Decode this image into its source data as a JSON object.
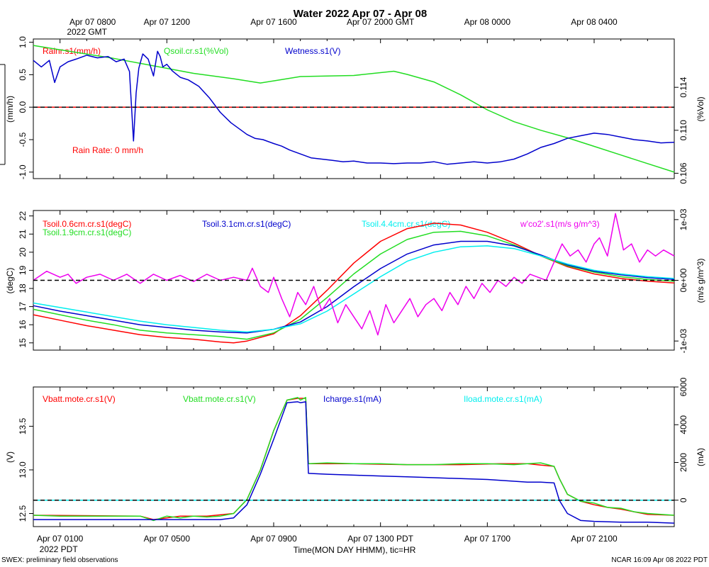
{
  "title": "Water 2022 Apr 07 - Apr 08",
  "top_axis": {
    "ticks": [
      {
        "t": 0,
        "l1": "Apr 07 0800",
        "l2": "2022 GMT"
      },
      {
        "t": 4,
        "l1": "Apr 07 1200",
        "l2": ""
      },
      {
        "t": 8,
        "l1": "Apr 07 1600",
        "l2": ""
      },
      {
        "t": 12,
        "l1": "Apr 07 2000 GMT",
        "l2": ""
      },
      {
        "t": 16,
        "l1": "Apr 08 0000",
        "l2": ""
      },
      {
        "t": 20,
        "l1": "Apr 08 0400",
        "l2": ""
      }
    ]
  },
  "bottom_axis": {
    "ticks": [
      {
        "t": 0,
        "l1": "Apr 07 0100",
        "l2": "2022 PDT"
      },
      {
        "t": 4,
        "l1": "Apr 07 0500",
        "l2": ""
      },
      {
        "t": 8,
        "l1": "Apr 07 0900",
        "l2": ""
      },
      {
        "t": 12,
        "l1": "Apr 07 1300 PDT",
        "l2": ""
      },
      {
        "t": 16,
        "l1": "Apr 07 1700",
        "l2": ""
      },
      {
        "t": 20,
        "l1": "Apr 07 2100",
        "l2": ""
      }
    ],
    "label": "Time(MON DAY HHMM), tic=HR"
  },
  "footer_left": "SWEX: preliminary field observations",
  "footer_right": "NCAR 16:09 Apr 08 2022 PDT",
  "colors": {
    "red": "#ff0000",
    "green": "#22dd22",
    "blue": "#0000cc",
    "cyan": "#00eeee",
    "magenta": "#ee00ee"
  },
  "chart_data": [
    {
      "type": "line",
      "panel": "water",
      "xlim": [
        -1.0,
        23.0
      ],
      "left_axis": {
        "label": "(mm/h)",
        "ylim": [
          -1.1,
          1.05
        ],
        "ticks": [
          -1.0,
          -0.5,
          0.0,
          0.5,
          1.0
        ],
        "tick_labels": [
          "-1.0",
          "-0.5",
          "0.0",
          "0.5",
          "1.0"
        ]
      },
      "right_axis": {
        "label": "(%Vol)",
        "ylim": [
          0.1055,
          0.1185
        ],
        "ticks": [
          0.106,
          0.11,
          0.114
        ],
        "tick_labels": [
          "0.106",
          "0.110",
          "0.114"
        ]
      },
      "zero_line": 0.0,
      "annotation": "Rain Rate: 0 mm/h",
      "series": [
        {
          "name": "Rainr.s1(mm/h)",
          "color": "red",
          "axis": "left",
          "x": [
            -1.0,
            23.0
          ],
          "y": [
            0.0,
            0.0
          ]
        },
        {
          "name": "Qsoil.cr.s1(%Vol)",
          "color": "green",
          "axis": "right",
          "x": [
            -1.0,
            0.0,
            2.0,
            3.5,
            5.0,
            6.5,
            7.5,
            8.0,
            9.0,
            11.0,
            12.5,
            13.0,
            14.0,
            15.0,
            16.0,
            17.0,
            18.0,
            19.0,
            20.0,
            21.0,
            22.0,
            23.0
          ],
          "y": [
            0.1179,
            0.1175,
            0.1167,
            0.116,
            0.1153,
            0.1148,
            0.1144,
            0.1146,
            0.115,
            0.1151,
            0.1155,
            0.1152,
            0.1145,
            0.1133,
            0.1119,
            0.1108,
            0.11,
            0.1093,
            0.1085,
            0.1077,
            0.1069,
            0.1061
          ]
        },
        {
          "name": "Wetness.s1(V)",
          "color": "blue",
          "axis": "left",
          "x": [
            -1.0,
            -0.7,
            -0.4,
            -0.2,
            0.0,
            0.3,
            0.6,
            1.0,
            1.4,
            1.8,
            2.1,
            2.4,
            2.6,
            2.75,
            2.85,
            2.95,
            3.1,
            3.3,
            3.5,
            3.65,
            3.75,
            3.85,
            4.0,
            4.2,
            4.5,
            4.8,
            5.2,
            5.6,
            6.0,
            6.4,
            6.8,
            7.0,
            7.3,
            7.6,
            8.0,
            8.3,
            8.6,
            9.0,
            9.4,
            9.8,
            10.2,
            10.6,
            11.0,
            11.5,
            12.0,
            12.5,
            13.0,
            13.5,
            14.0,
            14.5,
            15.0,
            15.5,
            16.0,
            16.5,
            17.0,
            17.5,
            18.0,
            18.5,
            19.0,
            19.5,
            20.0,
            20.5,
            21.0,
            21.5,
            22.0,
            22.5,
            23.0
          ],
          "y": [
            0.72,
            0.62,
            0.72,
            0.38,
            0.62,
            0.7,
            0.74,
            0.8,
            0.76,
            0.78,
            0.7,
            0.74,
            0.55,
            -0.52,
            0.22,
            0.6,
            0.82,
            0.74,
            0.48,
            0.86,
            0.78,
            0.62,
            0.66,
            0.56,
            0.46,
            0.42,
            0.32,
            0.14,
            -0.08,
            -0.24,
            -0.36,
            -0.42,
            -0.48,
            -0.5,
            -0.56,
            -0.6,
            -0.66,
            -0.72,
            -0.78,
            -0.8,
            -0.82,
            -0.84,
            -0.83,
            -0.86,
            -0.86,
            -0.87,
            -0.86,
            -0.86,
            -0.84,
            -0.88,
            -0.86,
            -0.84,
            -0.86,
            -0.84,
            -0.8,
            -0.72,
            -0.62,
            -0.56,
            -0.48,
            -0.44,
            -0.4,
            -0.42,
            -0.46,
            -0.5,
            -0.52,
            -0.55,
            -0.54
          ]
        }
      ]
    },
    {
      "type": "line",
      "panel": "soil-temperature",
      "xlim": [
        -1.0,
        23.0
      ],
      "left_axis": {
        "label": "(degC)",
        "ylim": [
          14.6,
          22.3
        ],
        "ticks": [
          15,
          16,
          17,
          18,
          19,
          20,
          21,
          22
        ],
        "tick_labels": [
          "15",
          "16",
          "17",
          "18",
          "19",
          "20",
          "21",
          "22"
        ]
      },
      "right_axis": {
        "label": "(m/s g/m^3)",
        "ylim": [
          -0.00115,
          0.00115
        ],
        "ticks": [
          -0.001,
          0.0,
          0.001
        ],
        "tick_labels": [
          "-1e-03",
          "0e+00",
          "1e-03"
        ]
      },
      "zero_line_right": 0.0,
      "series": [
        {
          "name": "Tsoil.0.6cm.cr.s1(degC)",
          "color": "red",
          "axis": "left",
          "x": [
            -1.0,
            0.0,
            1.0,
            2.0,
            3.0,
            4.0,
            5.0,
            6.0,
            6.5,
            7.0,
            8.0,
            9.0,
            10.0,
            11.0,
            12.0,
            13.0,
            14.0,
            15.0,
            16.0,
            17.0,
            18.0,
            19.0,
            20.0,
            21.0,
            22.0,
            23.0
          ],
          "y": [
            16.55,
            16.25,
            15.95,
            15.7,
            15.45,
            15.3,
            15.2,
            15.05,
            15.0,
            15.1,
            15.5,
            16.5,
            17.9,
            19.4,
            20.6,
            21.3,
            21.6,
            21.5,
            21.1,
            20.5,
            19.8,
            19.2,
            18.8,
            18.55,
            18.4,
            18.3
          ]
        },
        {
          "name": "Tsoil.1.9cm.cr.s1(degC)",
          "color": "green",
          "axis": "left",
          "x": [
            -1.0,
            0.0,
            1.0,
            2.0,
            3.0,
            4.0,
            5.0,
            6.0,
            7.0,
            8.0,
            9.0,
            10.0,
            11.0,
            12.0,
            13.0,
            14.0,
            15.0,
            16.0,
            17.0,
            18.0,
            19.0,
            20.0,
            21.0,
            22.0,
            23.0
          ],
          "y": [
            16.85,
            16.55,
            16.25,
            16.0,
            15.7,
            15.55,
            15.45,
            15.35,
            15.2,
            15.55,
            16.3,
            17.5,
            18.8,
            19.9,
            20.7,
            21.1,
            21.15,
            20.9,
            20.4,
            19.8,
            19.25,
            18.9,
            18.65,
            18.5,
            18.4
          ]
        },
        {
          "name": "Tsoil.3.1cm.cr.s1(degC)",
          "color": "blue",
          "axis": "left",
          "x": [
            -1.0,
            0.0,
            1.0,
            2.0,
            3.0,
            4.0,
            5.0,
            6.0,
            7.0,
            8.0,
            9.0,
            10.0,
            11.0,
            12.0,
            13.0,
            14.0,
            15.0,
            16.0,
            17.0,
            18.0,
            19.0,
            20.0,
            21.0,
            22.0,
            23.0
          ],
          "y": [
            17.05,
            16.75,
            16.5,
            16.25,
            16.0,
            15.85,
            15.7,
            15.6,
            15.55,
            15.75,
            16.15,
            17.0,
            18.1,
            19.1,
            19.9,
            20.4,
            20.6,
            20.6,
            20.35,
            19.85,
            19.3,
            18.95,
            18.75,
            18.6,
            18.5
          ]
        },
        {
          "name": "Tsoil.4.4cm.cr.s1(degC)",
          "color": "cyan",
          "axis": "left",
          "x": [
            -1.0,
            0.0,
            1.0,
            2.0,
            3.0,
            4.0,
            5.0,
            6.0,
            7.0,
            8.0,
            9.0,
            10.0,
            11.0,
            12.0,
            13.0,
            14.0,
            15.0,
            16.0,
            17.0,
            18.0,
            19.0,
            20.0,
            21.0,
            22.0,
            23.0
          ],
          "y": [
            17.2,
            16.95,
            16.7,
            16.45,
            16.2,
            16.0,
            15.85,
            15.7,
            15.6,
            15.75,
            16.05,
            16.75,
            17.7,
            18.65,
            19.5,
            20.0,
            20.3,
            20.35,
            20.2,
            19.8,
            19.35,
            19.0,
            18.8,
            18.65,
            18.55
          ]
        },
        {
          "name": "w'co2'.s1(m/s g/m^3)",
          "color": "magenta",
          "axis": "right",
          "x": [
            -1.0,
            -0.5,
            0.0,
            0.3,
            0.6,
            1.0,
            1.5,
            2.0,
            2.5,
            3.0,
            3.5,
            4.0,
            4.5,
            5.0,
            5.5,
            6.0,
            6.5,
            7.0,
            7.2,
            7.5,
            7.8,
            8.0,
            8.3,
            8.6,
            8.9,
            9.2,
            9.5,
            9.8,
            10.1,
            10.4,
            10.7,
            11.0,
            11.3,
            11.6,
            11.9,
            12.2,
            12.5,
            12.8,
            13.1,
            13.4,
            13.7,
            14.0,
            14.3,
            14.6,
            14.9,
            15.2,
            15.5,
            15.8,
            16.1,
            16.4,
            16.7,
            17.0,
            17.3,
            17.6,
            17.9,
            18.2,
            18.5,
            18.8,
            19.1,
            19.4,
            19.7,
            20.0,
            20.2,
            20.5,
            20.8,
            21.1,
            21.4,
            21.7,
            22.0,
            22.3,
            22.6,
            23.0
          ],
          "y": [
            0.0,
            0.00015,
            5e-05,
            0.0001,
            -5e-05,
            5e-05,
            0.0001,
            0.0,
            0.0001,
            -5e-05,
            0.0001,
            0.0,
            8e-05,
            -2e-05,
            0.0001,
            0.0,
            5e-05,
            0.0,
            0.0002,
            -0.0001,
            -0.0002,
            5e-05,
            -0.0003,
            -0.0006,
            -0.0002,
            -0.0004,
            -0.0001,
            -0.0005,
            -0.0003,
            -0.0007,
            -0.0004,
            -0.0006,
            -0.0008,
            -0.0005,
            -0.0009,
            -0.0004,
            -0.0007,
            -0.0005,
            -0.0003,
            -0.0006,
            -0.0004,
            -0.0003,
            -0.0005,
            -0.0002,
            -0.0004,
            -0.0001,
            -0.0003,
            -5e-05,
            -0.0002,
            0.0,
            -0.0001,
            5e-05,
            -5e-05,
            0.0001,
            5e-05,
            0.0,
            0.0003,
            0.0006,
            0.0004,
            0.0005,
            0.0003,
            0.0006,
            0.0007,
            0.0004,
            0.0011,
            0.0005,
            0.0006,
            0.0003,
            0.0005,
            0.0004,
            0.0005,
            0.0004
          ]
        }
      ]
    },
    {
      "type": "line",
      "panel": "power",
      "xlim": [
        -1.0,
        23.0
      ],
      "left_axis": {
        "label": "(V)",
        "ylim": [
          12.35,
          13.95
        ],
        "ticks": [
          12.5,
          13.0,
          13.5
        ],
        "tick_labels": [
          "12.5",
          "13.0",
          "13.5"
        ]
      },
      "right_axis": {
        "label": "(mA)",
        "ylim": [
          -1400,
          6000
        ],
        "ticks": [
          0,
          2000,
          4000,
          6000
        ],
        "tick_labels": [
          "0",
          "2000",
          "4000",
          "6000"
        ]
      },
      "zero_line_right": 0,
      "series": [
        {
          "name": "Vbatt.mote.cr.s1(V)",
          "color": "red",
          "axis": "left",
          "x": [
            -1.0,
            3.0,
            3.5,
            4.5,
            5.5,
            6.5,
            7.0,
            7.5,
            8.0,
            8.5,
            8.9,
            9.0,
            9.2,
            9.3,
            11.0,
            13.0,
            15.0,
            16.5,
            17.5,
            18.5,
            18.7,
            19.0,
            19.5,
            20.0,
            20.5,
            21.0,
            21.5,
            22.0,
            23.0
          ],
          "y": [
            12.48,
            12.47,
            12.43,
            12.47,
            12.47,
            12.5,
            12.66,
            13.0,
            13.45,
            13.8,
            13.82,
            13.82,
            13.82,
            13.07,
            13.07,
            13.06,
            13.06,
            13.07,
            13.07,
            13.04,
            12.9,
            12.72,
            12.64,
            12.6,
            12.57,
            12.55,
            12.52,
            12.49,
            12.48
          ]
        },
        {
          "name": "Vbatt.mote.cr.s1(V)",
          "color": "green",
          "axis": "left",
          "x": [
            -1.0,
            0.0,
            1.0,
            2.0,
            3.0,
            3.5,
            4.0,
            4.5,
            5.0,
            5.5,
            6.0,
            6.5,
            7.0,
            7.5,
            8.0,
            8.5,
            8.9,
            9.0,
            9.2,
            9.3,
            10.0,
            11.0,
            12.0,
            13.0,
            14.0,
            15.0,
            16.0,
            17.0,
            17.5,
            18.0,
            18.5,
            18.7,
            19.0,
            19.5,
            20.0,
            20.5,
            21.0,
            21.5,
            22.0,
            22.5,
            23.0
          ],
          "y": [
            12.48,
            12.47,
            12.47,
            12.47,
            12.47,
            12.42,
            12.47,
            12.45,
            12.47,
            12.46,
            12.47,
            12.5,
            12.66,
            13.0,
            13.45,
            13.8,
            13.83,
            13.8,
            13.83,
            13.07,
            13.08,
            13.07,
            13.07,
            13.06,
            13.06,
            13.07,
            13.07,
            13.06,
            13.07,
            13.08,
            13.04,
            12.9,
            12.72,
            12.64,
            12.62,
            12.57,
            12.56,
            12.52,
            12.5,
            12.49,
            12.48
          ]
        },
        {
          "name": "Icharge.s1(mA)",
          "color": "blue",
          "axis": "left",
          "x": [
            -1.0,
            0.0,
            1.0,
            2.0,
            3.0,
            4.0,
            5.0,
            6.0,
            6.5,
            7.0,
            7.5,
            8.0,
            8.5,
            8.9,
            9.0,
            9.2,
            9.3,
            10.0,
            11.0,
            12.0,
            13.0,
            14.0,
            15.0,
            16.0,
            17.0,
            17.5,
            18.0,
            18.5,
            18.7,
            19.0,
            19.5,
            20.0,
            21.0,
            22.0,
            23.0
          ],
          "y": [
            12.43,
            12.43,
            12.43,
            12.43,
            12.43,
            12.43,
            12.43,
            12.43,
            12.45,
            12.6,
            12.95,
            13.35,
            13.77,
            13.78,
            13.77,
            13.78,
            12.96,
            12.95,
            12.94,
            12.93,
            12.92,
            12.91,
            12.9,
            12.89,
            12.87,
            12.86,
            12.86,
            12.85,
            12.65,
            12.5,
            12.42,
            12.41,
            12.4,
            12.4,
            12.39
          ]
        },
        {
          "name": "Iload.mote.cr.s1(mA)",
          "color": "cyan",
          "axis": "right",
          "x": [
            -1.0,
            23.0
          ],
          "y": [
            0,
            0
          ]
        }
      ]
    }
  ]
}
